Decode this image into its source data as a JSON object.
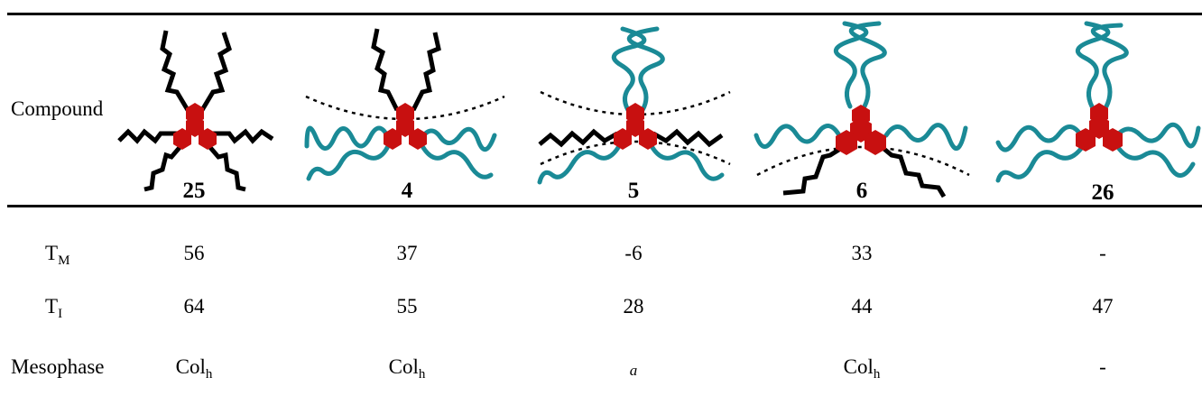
{
  "rows": {
    "compound": "Compound",
    "tm": {
      "base": "T",
      "sub": "M"
    },
    "ti": {
      "base": "T",
      "sub": "I"
    },
    "mesophase": "Mesophase"
  },
  "compounds": [
    {
      "id": "25",
      "tm": "56",
      "ti": "64",
      "meso_base": "Col",
      "meso_sub": "h"
    },
    {
      "id": "4",
      "tm": "37",
      "ti": "55",
      "meso_base": "Col",
      "meso_sub": "h"
    },
    {
      "id": "5",
      "tm": "-6",
      "ti": "28",
      "meso_note": "a"
    },
    {
      "id": "6",
      "tm": "33",
      "ti": "44",
      "meso_base": "Col",
      "meso_sub": "h"
    },
    {
      "id": "26",
      "tm": "-",
      "ti": "47",
      "meso_dash": "-"
    }
  ],
  "colors": {
    "core": "#c81010",
    "chain_dark": "#000000",
    "chain_cyan": "#1a8a96"
  }
}
